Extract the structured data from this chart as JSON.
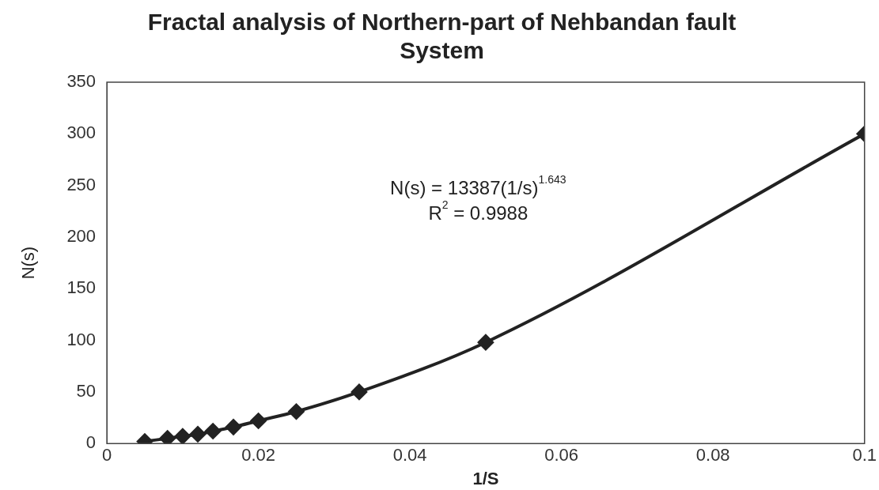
{
  "chart_data": {
    "type": "line",
    "title": [
      "Fractal analysis of Northern-part of Nehbandan fault",
      "System"
    ],
    "xlabel": "1/S",
    "ylabel": "N(s)",
    "series": [
      {
        "color": "#222222",
        "x": [
          0.005,
          0.008,
          0.01,
          0.012,
          0.014,
          0.0167,
          0.02,
          0.025,
          0.0333,
          0.05,
          0.1
        ],
        "values": [
          2,
          5,
          7,
          9,
          12,
          16,
          22,
          31,
          50,
          98,
          300
        ]
      }
    ],
    "xlim": [
      0,
      0.1
    ],
    "xticks": [
      0,
      0.02,
      0.04,
      0.06,
      0.08,
      0.1
    ],
    "ylim": [
      0,
      350
    ],
    "yticks": [
      0,
      50,
      100,
      150,
      200,
      250,
      300,
      350
    ],
    "marker": "diamond",
    "line_style": "solid",
    "grid": false,
    "legend": false,
    "annotations": [
      "N(s) = 13387(1/s)$^{1.643}$",
      "R$^{2}$ = 0.9988"
    ]
  }
}
